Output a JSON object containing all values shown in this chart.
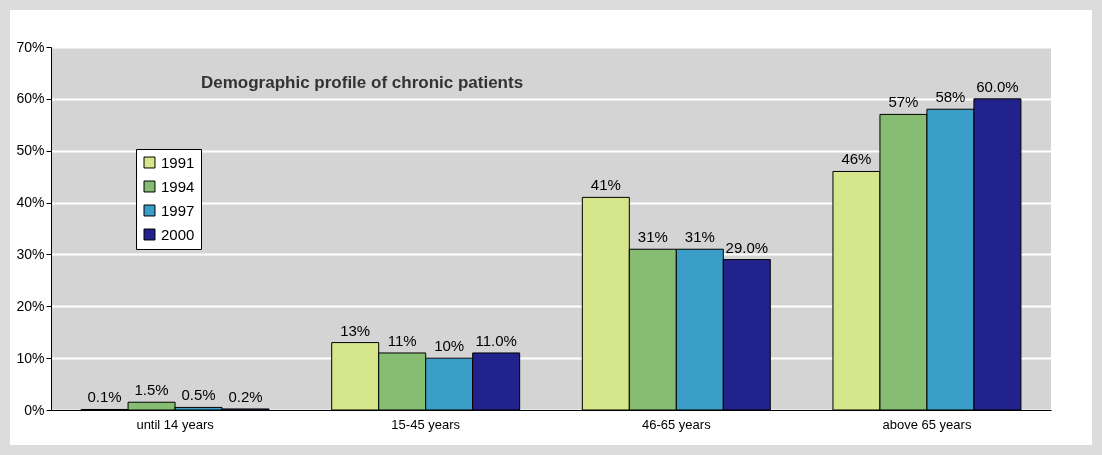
{
  "chart_data": {
    "type": "bar",
    "title": "Demographic profile of chronic patients",
    "categories": [
      "until 14 years",
      "15-45 years",
      "46-65 years",
      "above 65 years"
    ],
    "series": [
      {
        "name": "1991",
        "color": "#d6e68a",
        "values": [
          0.1,
          13,
          41,
          46
        ],
        "value_labels": [
          "0.1%",
          "13%",
          "41%",
          "46%"
        ]
      },
      {
        "name": "1994",
        "color": "#86bd72",
        "values": [
          1.5,
          11,
          31,
          57
        ],
        "value_labels": [
          "1.5%",
          "11%",
          "31%",
          "57%"
        ]
      },
      {
        "name": "1997",
        "color": "#3a9ec8",
        "values": [
          0.5,
          10,
          31,
          58
        ],
        "value_labels": [
          "0.5%",
          "10%",
          "31%",
          "58%"
        ]
      },
      {
        "name": "2000",
        "color": "#22228c",
        "values": [
          0.2,
          11.0,
          29.0,
          60.0
        ],
        "value_labels": [
          "0.2%",
          "11.0%",
          "29.0%",
          "60.0%"
        ]
      }
    ],
    "ylim": [
      0,
      70
    ],
    "yticks": [
      {
        "value": 0,
        "label": "0%"
      },
      {
        "value": 10,
        "label": "10%"
      },
      {
        "value": 20,
        "label": "20%"
      },
      {
        "value": 30,
        "label": "30%"
      },
      {
        "value": 40,
        "label": "40%"
      },
      {
        "value": 50,
        "label": "50%"
      },
      {
        "value": 60,
        "label": "60%"
      },
      {
        "value": 70,
        "label": "70%"
      }
    ],
    "grid": "y",
    "legend": "top left"
  }
}
